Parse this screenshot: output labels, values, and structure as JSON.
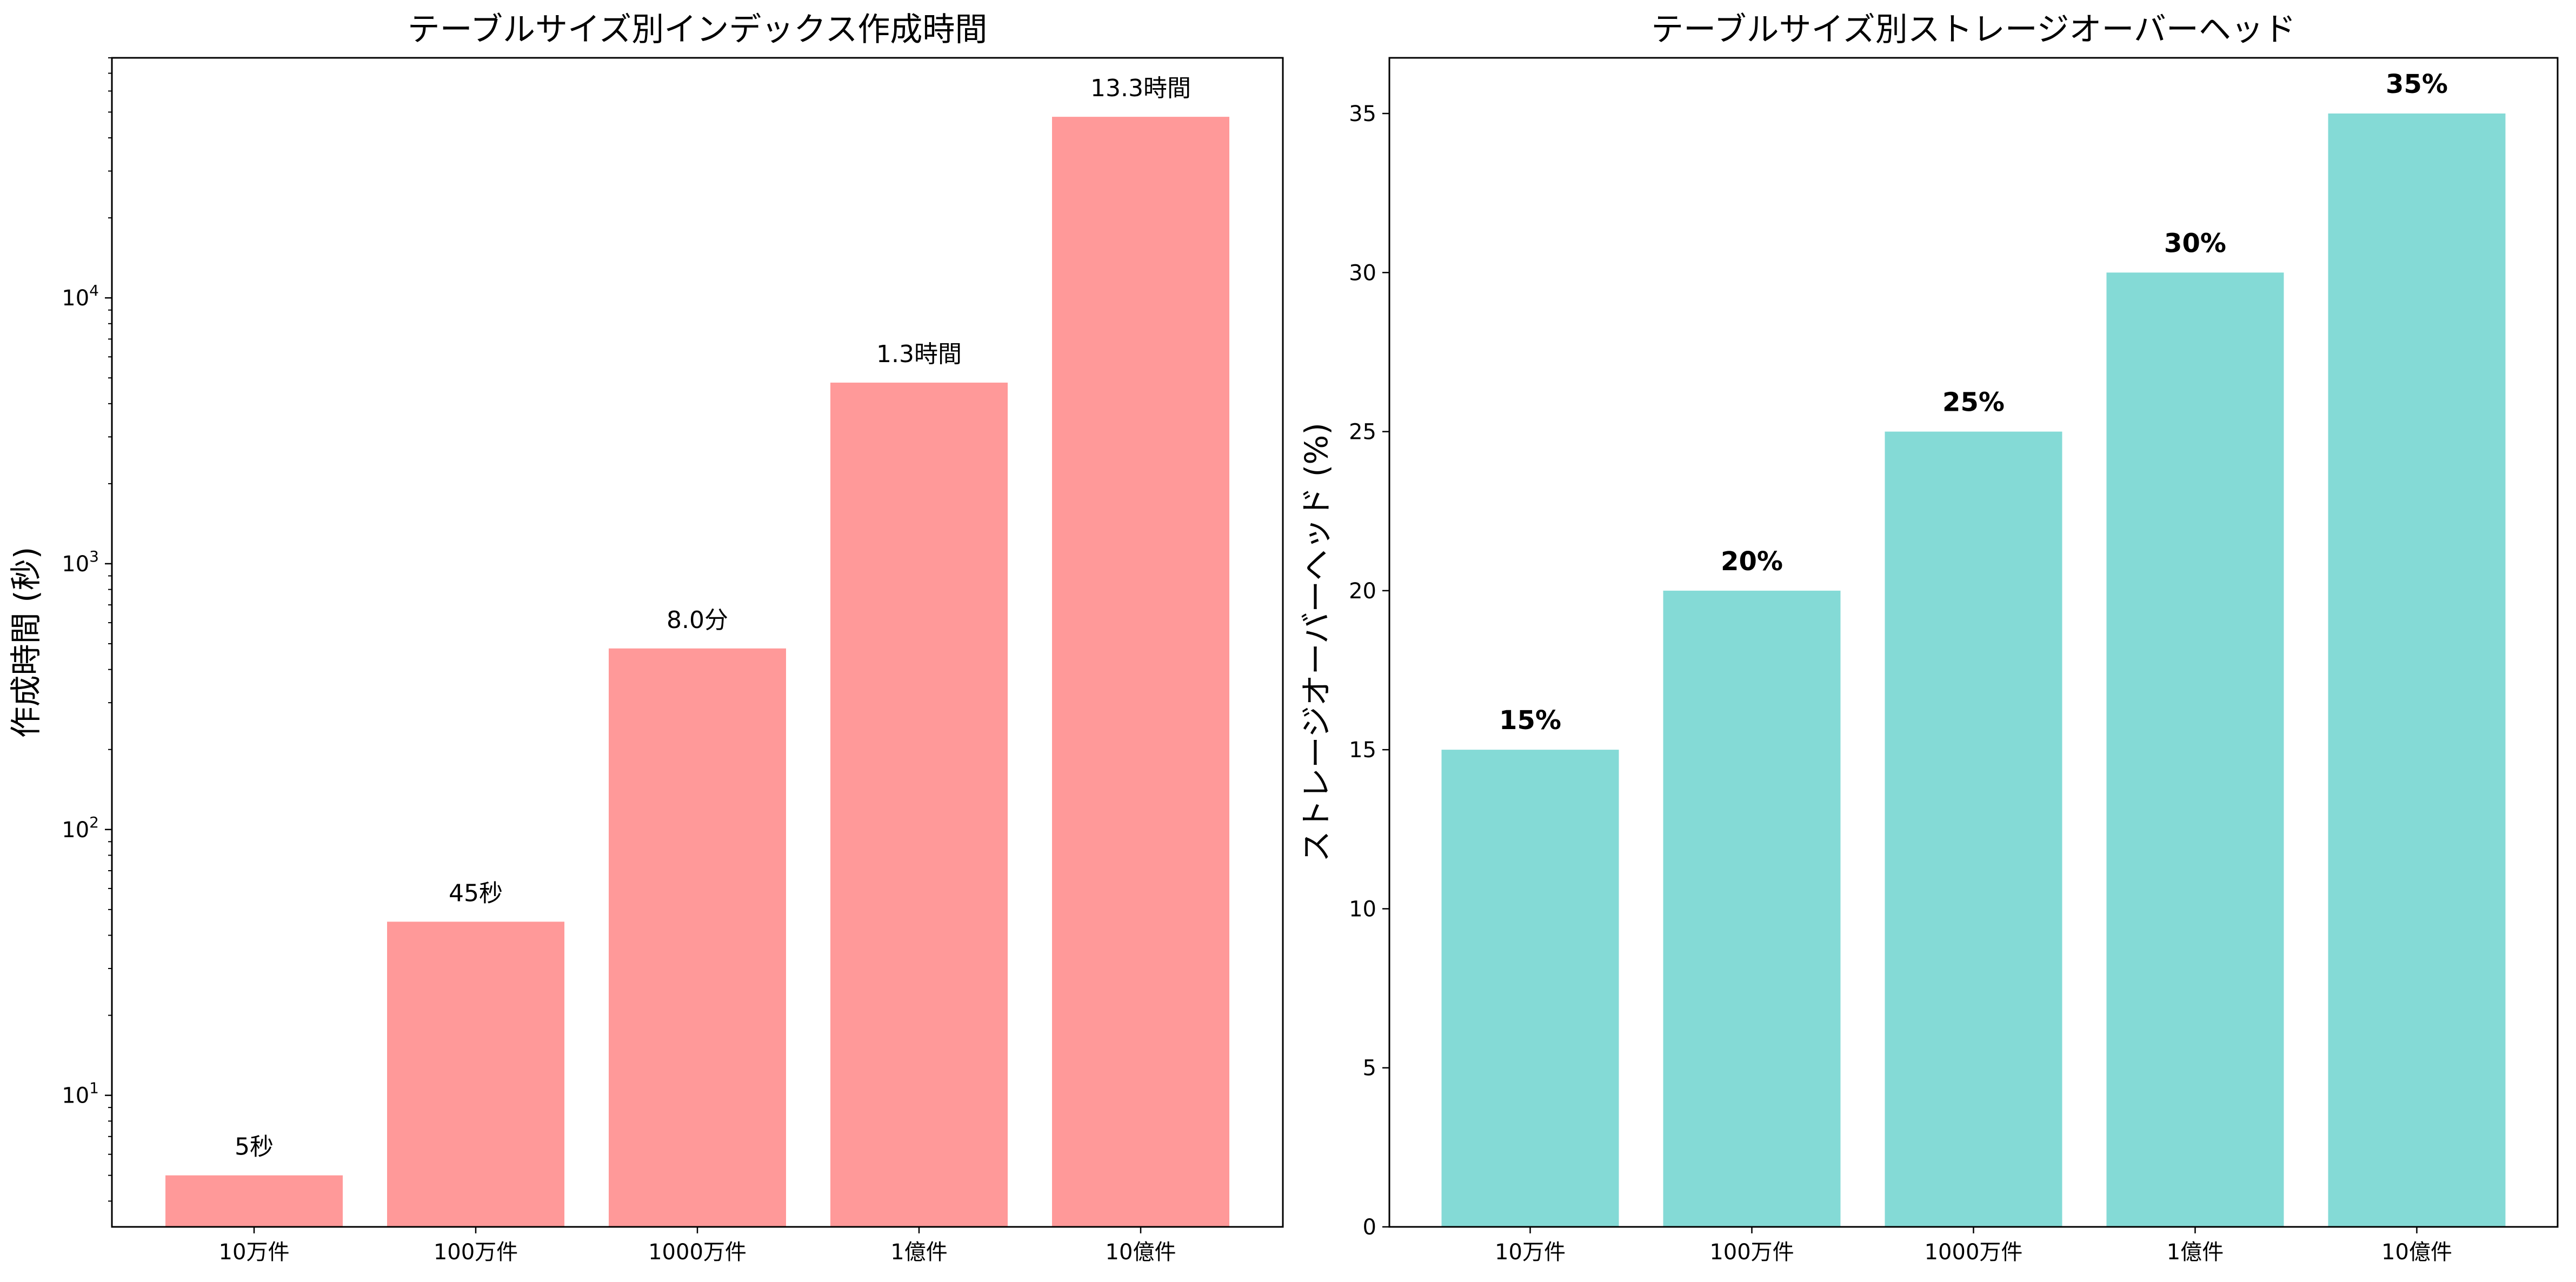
{
  "chart_data": [
    {
      "type": "bar",
      "title": "テーブルサイズ別インデックス作成時間",
      "xlabel": "",
      "ylabel": "作成時間 (秒)",
      "yscale": "log",
      "ylim": [
        3.2,
        80000
      ],
      "y_ticks": [
        10,
        100,
        1000,
        10000
      ],
      "y_tick_labels": [
        [
          "10",
          "1"
        ],
        [
          "10",
          "2"
        ],
        [
          "10",
          "3"
        ],
        [
          "10",
          "4"
        ]
      ],
      "categories": [
        "10万件",
        "100万件",
        "1000万件",
        "1億件",
        "10億件"
      ],
      "values": [
        5,
        45,
        480,
        4800,
        48000
      ],
      "data_labels": [
        "5秒",
        "45秒",
        "8.0分",
        "1.3時間",
        "13.3時間"
      ],
      "color": "#ff9999",
      "grid": false
    },
    {
      "type": "bar",
      "title": "テーブルサイズ別ストレージオーバーヘッド",
      "xlabel": "",
      "ylabel": "ストレージオーバーヘッド (%)",
      "yscale": "linear",
      "ylim": [
        0,
        36.75
      ],
      "y_ticks": [
        0,
        5,
        10,
        15,
        20,
        25,
        30,
        35
      ],
      "y_tick_labels": [
        "0",
        "5",
        "10",
        "15",
        "20",
        "25",
        "30",
        "35"
      ],
      "categories": [
        "10万件",
        "100万件",
        "1000万件",
        "1億件",
        "10億件"
      ],
      "values": [
        15,
        20,
        25,
        30,
        35
      ],
      "data_labels": [
        "15%",
        "20%",
        "25%",
        "30%",
        "35%"
      ],
      "color": "#84dad6",
      "grid": false
    }
  ]
}
